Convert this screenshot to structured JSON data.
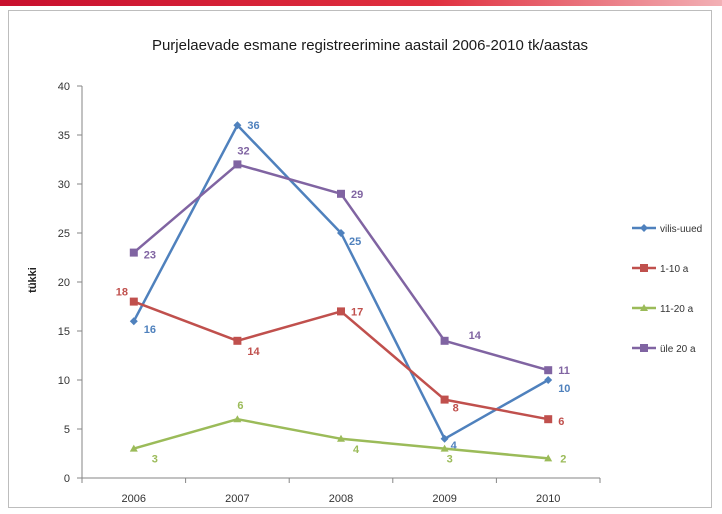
{
  "chart_data": {
    "type": "line",
    "title": "Purjelaevade  esmane registreerimine  aastail 2006-2010 tk/aastas",
    "xlabel": "",
    "ylabel": "tükki",
    "categories": [
      "2006",
      "2007",
      "2008",
      "2009",
      "2010"
    ],
    "ylim": [
      0,
      40
    ],
    "yticks": [
      0,
      5,
      10,
      15,
      20,
      25,
      30,
      35,
      40
    ],
    "grid": false,
    "legend_position": "right",
    "series": [
      {
        "name": "vilis-uued",
        "color": "#4f81bd",
        "marker": "diamond",
        "values": [
          16,
          36,
          25,
          4,
          10
        ]
      },
      {
        "name": "1-10 a",
        "color": "#c0504d",
        "marker": "square",
        "values": [
          18,
          14,
          17,
          8,
          6
        ]
      },
      {
        "name": "11-20 a",
        "color": "#9bbb59",
        "marker": "triangle",
        "values": [
          3,
          6,
          4,
          3,
          2
        ]
      },
      {
        "name": "üle 20 a",
        "color": "#8064a2",
        "marker": "square",
        "values": [
          23,
          32,
          29,
          14,
          11
        ]
      }
    ]
  }
}
